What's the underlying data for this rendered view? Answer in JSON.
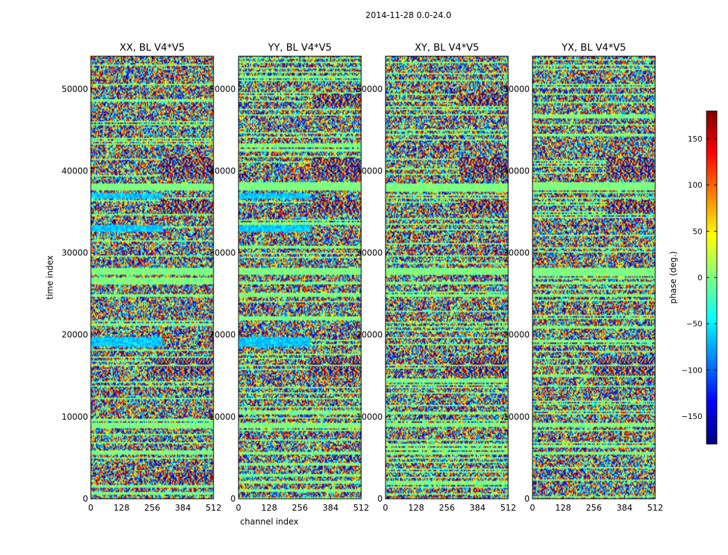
{
  "chart_data": {
    "type": "heatmap",
    "suptitle": "2014-11-28 0.0-24.0",
    "xlabel": "channel index",
    "ylabel": "time index",
    "xlim": [
      0,
      512
    ],
    "ylim": [
      0,
      54000
    ],
    "xticks": [
      0,
      128,
      256,
      384,
      512
    ],
    "yticks": [
      0,
      10000,
      20000,
      30000,
      40000,
      50000
    ],
    "panels": [
      {
        "title": "XX, BL V4*V5",
        "has_ylabel": true,
        "has_xlabel": false,
        "flag_bands": [
          [
            5400,
            5700
          ],
          [
            8700,
            9300
          ],
          [
            16200,
            16400
          ],
          [
            24600,
            25000
          ],
          [
            26200,
            26500
          ],
          [
            27300,
            28200
          ],
          [
            37700,
            38400
          ]
        ],
        "low_phase_bands": [
          [
            18600,
            19800
          ],
          [
            32600,
            33400
          ],
          [
            36600,
            37300
          ]
        ],
        "fringe_regions": [
          [
            290,
            512,
            39200,
            41600
          ],
          [
            290,
            512,
            35000,
            36400
          ],
          [
            250,
            512,
            15000,
            17200
          ],
          [
            270,
            512,
            2000,
            3200
          ]
        ]
      },
      {
        "title": "YY, BL V4*V5",
        "has_ylabel": false,
        "has_xlabel": true,
        "flag_bands": [
          [
            5400,
            5700
          ],
          [
            8700,
            9300
          ],
          [
            16200,
            16400
          ],
          [
            24600,
            25000
          ],
          [
            26200,
            26500
          ],
          [
            27300,
            28200
          ],
          [
            37700,
            38400
          ]
        ],
        "low_phase_bands": [
          [
            18600,
            19800
          ],
          [
            32600,
            33400
          ],
          [
            36600,
            37300
          ]
        ],
        "fringe_regions": [
          [
            310,
            512,
            48000,
            49500
          ],
          [
            310,
            512,
            39200,
            41600
          ],
          [
            310,
            512,
            35000,
            36400
          ],
          [
            290,
            512,
            15000,
            17200
          ]
        ]
      },
      {
        "title": "XY, BL V4*V5",
        "has_ylabel": false,
        "has_xlabel": false,
        "flag_bands": [
          [
            5400,
            5700
          ],
          [
            8700,
            9300
          ],
          [
            16200,
            16400
          ],
          [
            24600,
            25000
          ],
          [
            26200,
            26500
          ],
          [
            27300,
            28200
          ],
          [
            37700,
            38400
          ]
        ],
        "low_phase_bands": [],
        "fringe_regions": [
          [
            310,
            512,
            48000,
            49500
          ],
          [
            310,
            512,
            39200,
            41600
          ],
          [
            310,
            512,
            35000,
            36400
          ],
          [
            250,
            512,
            15000,
            17200
          ]
        ]
      },
      {
        "title": "YX, BL V4*V5",
        "has_ylabel": false,
        "has_xlabel": false,
        "flag_bands": [
          [
            5400,
            5700
          ],
          [
            8700,
            9300
          ],
          [
            16200,
            16400
          ],
          [
            24600,
            25000
          ],
          [
            26200,
            26500
          ],
          [
            27300,
            28200
          ],
          [
            37700,
            38400
          ]
        ],
        "low_phase_bands": [],
        "fringe_regions": [
          [
            310,
            512,
            39200,
            41600
          ],
          [
            310,
            512,
            35000,
            36400
          ],
          [
            250,
            512,
            15000,
            17200
          ]
        ]
      }
    ],
    "colorbar": {
      "label": "phase (deg.)",
      "vmin": -180,
      "vmax": 180,
      "ticks": [
        -150,
        -100,
        -50,
        0,
        50,
        100,
        150
      ],
      "tick_labels": [
        "−150",
        "−100",
        "−50",
        "0",
        "50",
        "100",
        "150"
      ],
      "colormap": "jet",
      "colors": [
        "#00007f",
        "#0000ff",
        "#007fff",
        "#00ffff",
        "#7fff7f",
        "#ffff00",
        "#ff7f00",
        "#ff0000",
        "#7f0000"
      ]
    }
  }
}
